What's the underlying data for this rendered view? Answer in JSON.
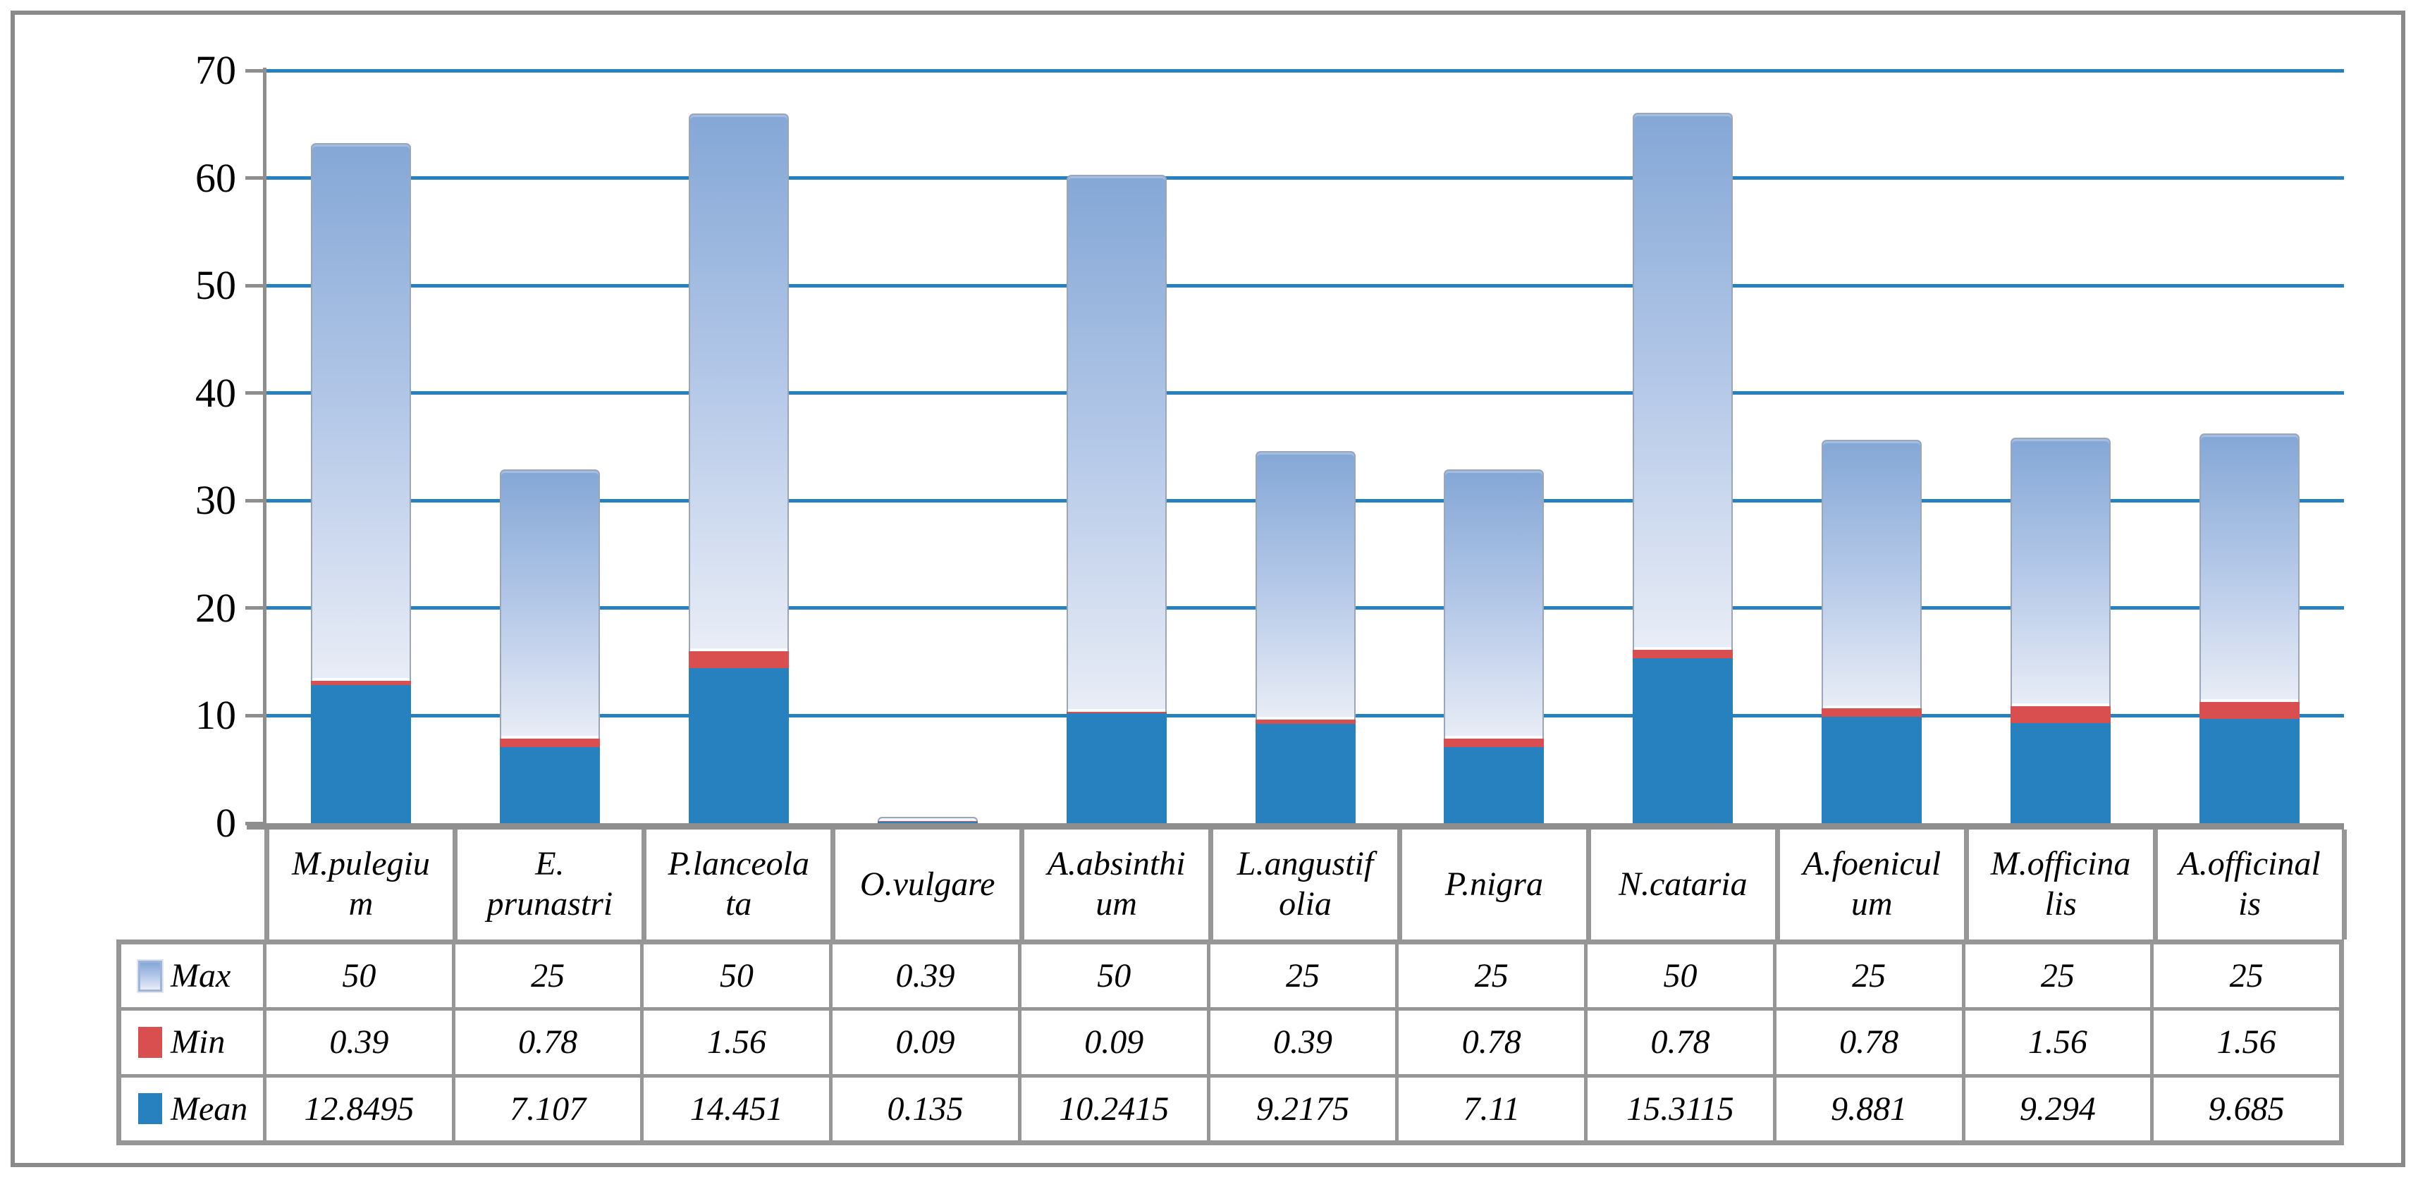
{
  "chart_data": {
    "type": "bar",
    "stacked": true,
    "title": "",
    "xlabel": "",
    "ylabel": "",
    "ylim": [
      0,
      70
    ],
    "y_ticks": [
      0,
      10,
      20,
      30,
      40,
      50,
      60,
      70
    ],
    "grid": "horizontal",
    "legend_position": "table-left-column",
    "categories": [
      "M.pulegium",
      "E. prunastri",
      "P.lanceolata",
      "O.vulgare",
      "A.absinthium",
      "L.angustifolia",
      "P.nigra",
      "N.cataria",
      "A.foeniculum",
      "M.officinalis",
      "A.officinalis"
    ],
    "category_labels_wrapped": [
      "M.pulegiu\nm",
      "E.\nprunastri",
      "P.lanceola\nta",
      "O.vulgare",
      "A.absinthi\num",
      "L.angustif\nolia",
      "P.nigra",
      "N.cataria",
      "A.foenicul\num",
      "M.officina\nlis",
      "A.officinal\nis"
    ],
    "series": [
      {
        "name": "Max",
        "values": [
          50,
          25,
          50,
          0.39,
          50,
          25,
          25,
          50,
          25,
          25,
          25
        ]
      },
      {
        "name": "Min",
        "values": [
          0.39,
          0.78,
          1.56,
          0.09,
          0.09,
          0.39,
          0.78,
          0.78,
          0.78,
          1.56,
          1.56
        ]
      },
      {
        "name": "Mean",
        "values": [
          12.8495,
          7.107,
          14.451,
          0.135,
          10.2415,
          9.2175,
          7.11,
          15.3115,
          9.881,
          9.294,
          9.685
        ]
      }
    ],
    "stack_order_bottom_to_top": [
      "Mean",
      "Min",
      "Max"
    ]
  },
  "colors": {
    "mean_blue": "#2781bf",
    "min_red": "#d94f50",
    "max_gradient_top": "#84a7d6",
    "max_gradient_mid": "#b4c8e8",
    "max_gradient_bottom": "#e9edf6",
    "gridline_blue": "#2781bf",
    "axis_gray": "#8e8e8e",
    "table_border_gray": "#969696",
    "frame_gray": "#8a8a8a",
    "text_black": "#000000"
  }
}
